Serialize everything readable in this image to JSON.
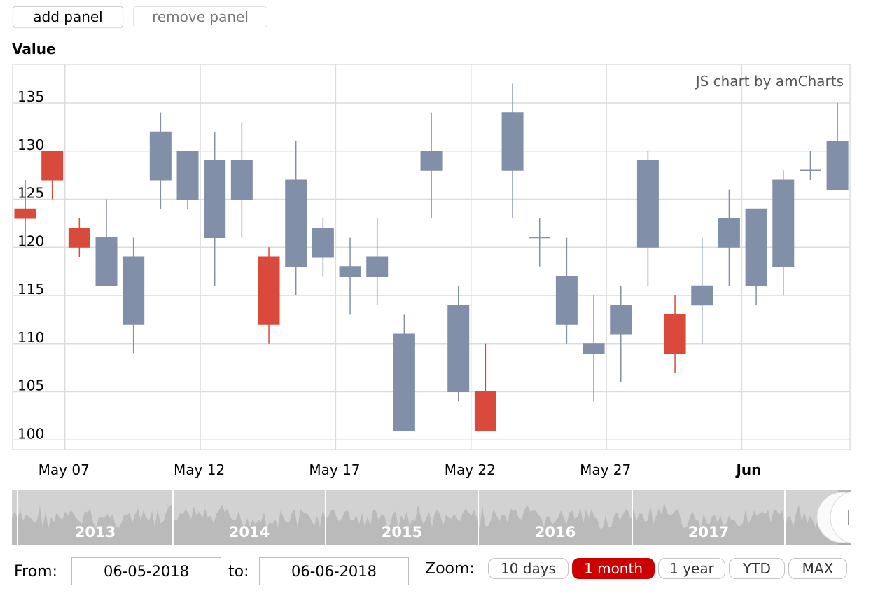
{
  "toolbar": {
    "add_label": "add panel",
    "remove_label": "remove panel"
  },
  "panel": {
    "title": "Value"
  },
  "credit": "JS chart by amCharts",
  "colors": {
    "up": "#8190a8",
    "down": "#d94a3c",
    "grid": "#dcdcdc",
    "scroll_bg": "#d2d2d2",
    "scroll_fill": "#bababa",
    "zoom_active": "#cc0000"
  },
  "chart_data": {
    "type": "candlestick",
    "title": "Value",
    "ylim": [
      99,
      139
    ],
    "y_ticks": [
      100,
      105,
      110,
      115,
      120,
      125,
      130,
      135
    ],
    "x_labels": [
      {
        "day": 1,
        "label": "May 07",
        "bold": false
      },
      {
        "day": 6,
        "label": "May 12",
        "bold": false
      },
      {
        "day": 11,
        "label": "May 17",
        "bold": false
      },
      {
        "day": 16,
        "label": "May 22",
        "bold": false
      },
      {
        "day": 21,
        "label": "May 27",
        "bold": false
      },
      {
        "day": 26,
        "label": "Jun",
        "bold": true
      }
    ],
    "candles": [
      {
        "day": 0,
        "open": 124,
        "high": 127,
        "low": 120,
        "close": 123
      },
      {
        "day": 1,
        "open": 130,
        "high": 130,
        "low": 125,
        "close": 127
      },
      {
        "day": 2,
        "open": 122,
        "high": 123,
        "low": 119,
        "close": 120
      },
      {
        "day": 3,
        "open": 116,
        "high": 125,
        "low": 116,
        "close": 121
      },
      {
        "day": 4,
        "open": 112,
        "high": 121,
        "low": 109,
        "close": 119
      },
      {
        "day": 5,
        "open": 127,
        "high": 134,
        "low": 124,
        "close": 132
      },
      {
        "day": 6,
        "open": 125,
        "high": 130,
        "low": 124,
        "close": 130
      },
      {
        "day": 7,
        "open": 121,
        "high": 132,
        "low": 116,
        "close": 129
      },
      {
        "day": 8,
        "open": 125,
        "high": 133,
        "low": 121,
        "close": 129
      },
      {
        "day": 9,
        "open": 119,
        "high": 120,
        "low": 110,
        "close": 112
      },
      {
        "day": 10,
        "open": 118,
        "high": 131,
        "low": 115,
        "close": 127
      },
      {
        "day": 11,
        "open": 119,
        "high": 123,
        "low": 117,
        "close": 122
      },
      {
        "day": 12,
        "open": 117,
        "high": 121,
        "low": 113,
        "close": 118
      },
      {
        "day": 13,
        "open": 117,
        "high": 123,
        "low": 114,
        "close": 119
      },
      {
        "day": 14,
        "open": 101,
        "high": 113,
        "low": 101,
        "close": 111
      },
      {
        "day": 15,
        "open": 128,
        "high": 134,
        "low": 123,
        "close": 130
      },
      {
        "day": 16,
        "open": 105,
        "high": 116,
        "low": 104,
        "close": 114
      },
      {
        "day": 17,
        "open": 105,
        "high": 110,
        "low": 101,
        "close": 101
      },
      {
        "day": 18,
        "open": 128,
        "high": 137,
        "low": 123,
        "close": 134
      },
      {
        "day": 19,
        "open": 121,
        "high": 123,
        "low": 118,
        "close": 121
      },
      {
        "day": 20,
        "open": 112,
        "high": 121,
        "low": 110,
        "close": 117
      },
      {
        "day": 21,
        "open": 109,
        "high": 115,
        "low": 104,
        "close": 110
      },
      {
        "day": 22,
        "open": 111,
        "high": 116,
        "low": 106,
        "close": 114
      },
      {
        "day": 23,
        "open": 120,
        "high": 130,
        "low": 116,
        "close": 129
      },
      {
        "day": 24,
        "open": 113,
        "high": 115,
        "low": 107,
        "close": 109
      },
      {
        "day": 25,
        "open": 114,
        "high": 121,
        "low": 110,
        "close": 116
      },
      {
        "day": 26,
        "open": 120,
        "high": 126,
        "low": 116,
        "close": 123
      },
      {
        "day": 27,
        "open": 116,
        "high": 124,
        "low": 114,
        "close": 124
      },
      {
        "day": 28,
        "open": 118,
        "high": 128,
        "low": 115,
        "close": 127
      },
      {
        "day": 29,
        "open": 128,
        "high": 130,
        "low": 127,
        "close": 128
      },
      {
        "day": 30,
        "open": 126,
        "high": 135,
        "low": 126,
        "close": 131
      }
    ]
  },
  "scrollbar": {
    "year_labels": [
      "2013",
      "2014",
      "2015",
      "2016",
      "2017"
    ]
  },
  "period": {
    "from_label": "From:",
    "from_value": "06-05-2018",
    "to_label": "to:",
    "to_value": "06-06-2018",
    "zoom_label": "Zoom:",
    "buttons": [
      {
        "label": "10 days",
        "active": false
      },
      {
        "label": "1 month",
        "active": true
      },
      {
        "label": "1 year",
        "active": false
      },
      {
        "label": "YTD",
        "active": false
      },
      {
        "label": "MAX",
        "active": false
      }
    ]
  }
}
